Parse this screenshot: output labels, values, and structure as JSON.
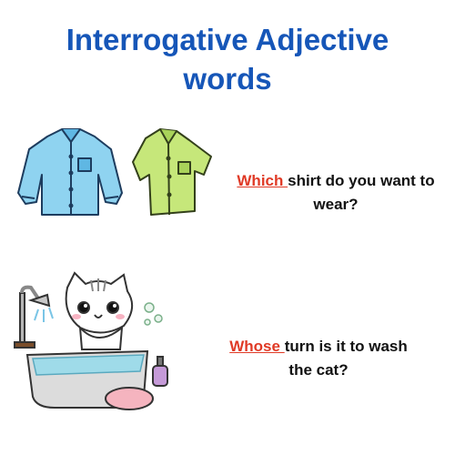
{
  "title": {
    "line1": "Interrogative Adjective",
    "line2": "words"
  },
  "colors": {
    "title": "#1656b8",
    "keyword": "#e03a26",
    "text": "#111111"
  },
  "examples": [
    {
      "keyword": "Which ",
      "rest_line1": "shirt do you want to",
      "rest_line2": "wear?",
      "illustration": "shirts-illustration"
    },
    {
      "keyword": "Whose ",
      "rest_line1": "turn is it to wash",
      "rest_line2": "the cat?",
      "illustration": "cat-bath-illustration"
    }
  ]
}
